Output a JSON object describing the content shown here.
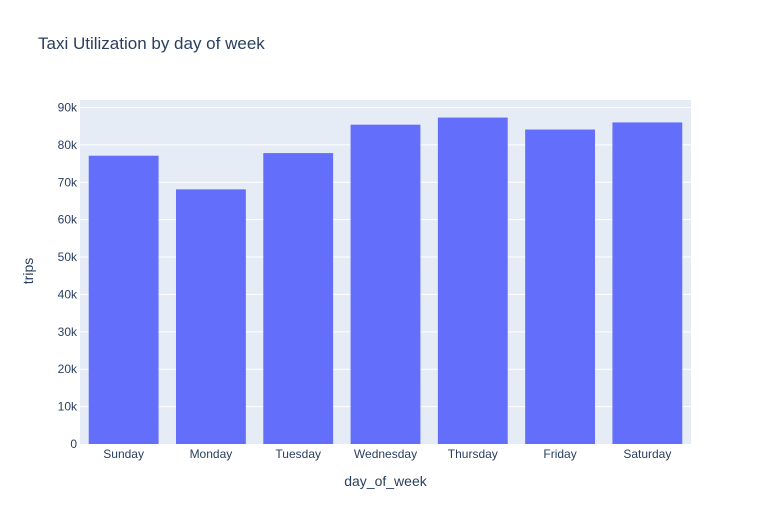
{
  "chart_data": {
    "type": "bar",
    "title": "Taxi Utilization by day of week",
    "xlabel": "day_of_week",
    "ylabel": "trips",
    "categories": [
      "Sunday",
      "Monday",
      "Tuesday",
      "Wednesday",
      "Thursday",
      "Friday",
      "Saturday"
    ],
    "values": [
      77100,
      68100,
      77800,
      85400,
      87300,
      84100,
      86000
    ],
    "ylim": [
      0,
      92000
    ],
    "yticks": [
      0,
      10000,
      20000,
      30000,
      40000,
      50000,
      60000,
      70000,
      80000,
      90000
    ],
    "ytick_labels": [
      "0",
      "10k",
      "20k",
      "30k",
      "40k",
      "50k",
      "60k",
      "70k",
      "80k",
      "90k"
    ],
    "grid": true,
    "legend": "none",
    "colors": {
      "bar": "#636efa",
      "plot_background": "#e5ecf6",
      "grid": "#ffffff",
      "text": "#2a3f5f"
    }
  }
}
